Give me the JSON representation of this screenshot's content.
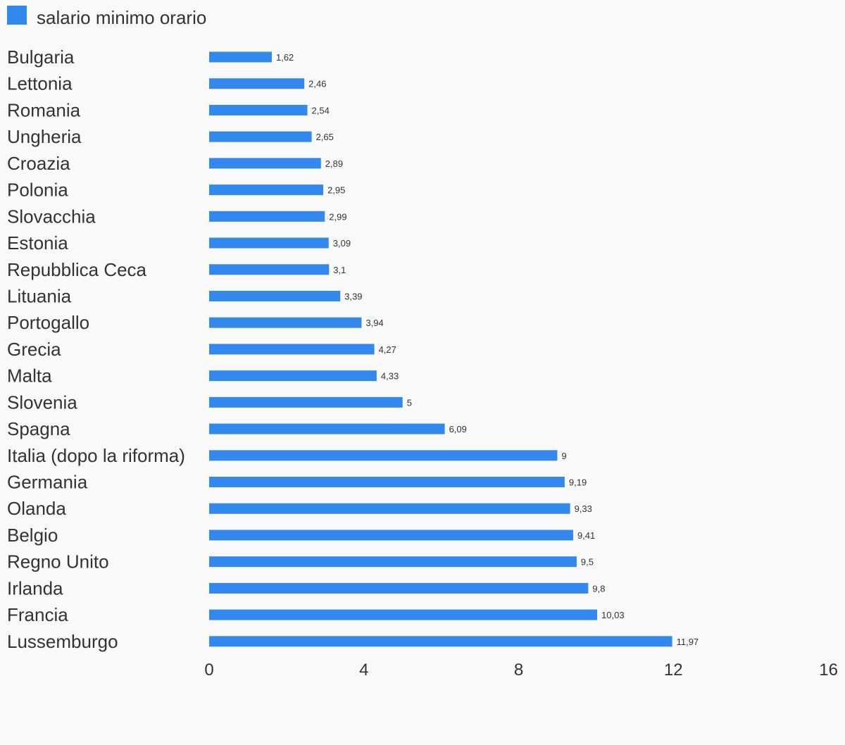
{
  "chart_data": {
    "type": "bar",
    "orientation": "horizontal",
    "series": [
      {
        "name": "salario minimo orario",
        "color": "#3388ee",
        "values": [
          1.62,
          2.46,
          2.54,
          2.65,
          2.89,
          2.95,
          2.99,
          3.09,
          3.1,
          3.39,
          3.94,
          4.27,
          4.33,
          5,
          6.09,
          9,
          9.19,
          9.33,
          9.41,
          9.5,
          9.8,
          10.03,
          11.97
        ],
        "value_labels": [
          "1,62",
          "2,46",
          "2,54",
          "2,65",
          "2,89",
          "2,95",
          "2,99",
          "3,09",
          "3,1",
          "3,39",
          "3,94",
          "4,27",
          "4,33",
          "5",
          "6,09",
          "9",
          "9,19",
          "9,33",
          "9,41",
          "9,5",
          "9,8",
          "10,03",
          "11,97"
        ]
      }
    ],
    "categories": [
      "Bulgaria",
      "Lettonia",
      "Romania",
      "Ungheria",
      "Croazia",
      "Polonia",
      "Slovacchia",
      "Estonia",
      "Repubblica Ceca",
      "Lituania",
      "Portogallo",
      "Grecia",
      "Malta",
      "Slovenia",
      "Spagna",
      "Italia (dopo la riforma)",
      "Germania",
      "Olanda",
      "Belgio",
      "Regno Unito",
      "Irlanda",
      "Francia",
      "Lussemburgo"
    ],
    "xlim": [
      0,
      16
    ],
    "xticks": [
      "0",
      "4",
      "8",
      "12",
      "16"
    ],
    "xtick_values": [
      0,
      4,
      8,
      12,
      16
    ],
    "legend_position": "top-left",
    "grid": false
  }
}
